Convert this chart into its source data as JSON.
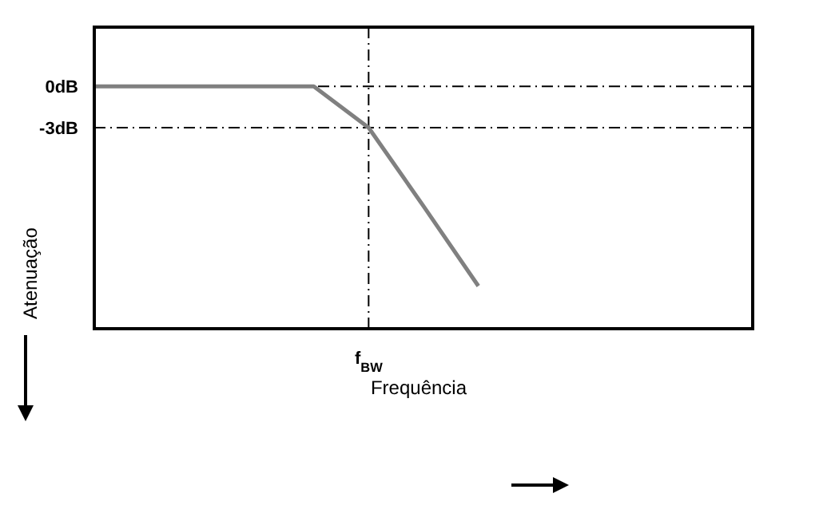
{
  "chart_data": {
    "type": "line",
    "xlabel": "Frequência",
    "ylabel": "Atenuação",
    "categories": [
      null,
      null,
      null,
      null,
      null,
      "f$_{BW}$",
      null,
      null,
      null,
      null,
      null,
      null,
      null
    ],
    "series": [
      {
        "color": "#808080",
        "values": [
          0,
          0,
          0,
          0,
          0,
          -3,
          -8.7,
          -14.5,
          null,
          null,
          null,
          null,
          null
        ]
      }
    ],
    "ylim": [
      -17.6,
      4.3
    ],
    "yticks": [
      {
        "value": 0,
        "label": "0dB"
      },
      {
        "value": -3,
        "label": "-3dB"
      }
    ],
    "ref_lines": [
      {
        "axis": "y",
        "value": 0,
        "line_style": "dashdot"
      },
      {
        "axis": "y",
        "value": -3,
        "line_style": "dashdot"
      },
      {
        "axis": "x",
        "value": "f$_{BW}$",
        "line_style": "dashdot"
      }
    ],
    "grid": false,
    "legend": false,
    "marker": "none",
    "line_style": "solid"
  }
}
